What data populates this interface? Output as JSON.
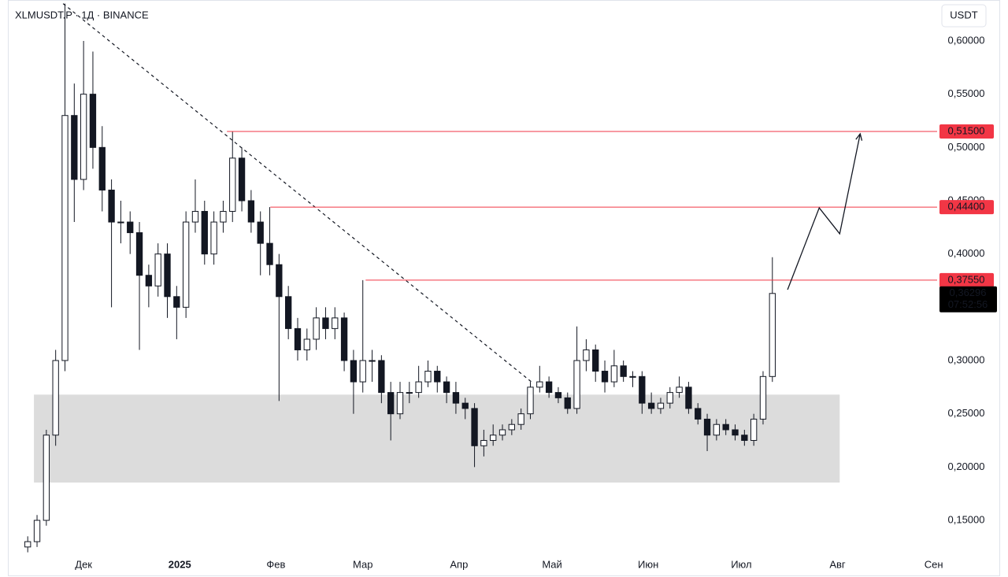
{
  "chart_data": {
    "type": "candlestick",
    "title": "XLMUSDT.P · 1Д · BINANCE",
    "currency": "USDT",
    "color": "#131722",
    "x": [
      -18,
      -15,
      -12,
      -9,
      -6,
      -3,
      0,
      3,
      6,
      9,
      12,
      15,
      18,
      21,
      24,
      27,
      30,
      33,
      36,
      39,
      42,
      45,
      48,
      51,
      54,
      57,
      60,
      63,
      66,
      69,
      72,
      75,
      78,
      81,
      84,
      87,
      90,
      93,
      96,
      99,
      102,
      105,
      108,
      111,
      114,
      117,
      120,
      123,
      126,
      129,
      132,
      135,
      138,
      141,
      144,
      147,
      150,
      153,
      156,
      159,
      162,
      165,
      168,
      171,
      174,
      177,
      180,
      183,
      186,
      189,
      192,
      195,
      198,
      201,
      204,
      207,
      210,
      213,
      216,
      219,
      222
    ],
    "open": [
      0.125,
      0.13,
      0.15,
      0.23,
      0.3,
      0.53,
      0.47,
      0.55,
      0.5,
      0.46,
      0.43,
      0.43,
      0.42,
      0.38,
      0.37,
      0.4,
      0.36,
      0.35,
      0.43,
      0.44,
      0.4,
      0.43,
      0.44,
      0.49,
      0.45,
      0.43,
      0.41,
      0.39,
      0.36,
      0.33,
      0.31,
      0.32,
      0.34,
      0.33,
      0.34,
      0.3,
      0.28,
      0.3,
      0.3,
      0.27,
      0.25,
      0.27,
      0.27,
      0.28,
      0.29,
      0.28,
      0.27,
      0.26,
      0.255,
      0.22,
      0.225,
      0.23,
      0.235,
      0.24,
      0.25,
      0.275,
      0.28,
      0.27,
      0.265,
      0.255,
      0.3,
      0.31,
      0.29,
      0.28,
      0.295,
      0.285,
      0.285,
      0.26,
      0.255,
      0.26,
      0.27,
      0.275,
      0.255,
      0.245,
      0.23,
      0.24,
      0.235,
      0.23,
      0.225,
      0.245,
      0.285
    ],
    "high": [
      0.135,
      0.155,
      0.235,
      0.31,
      0.635,
      0.56,
      0.6,
      0.59,
      0.52,
      0.47,
      0.45,
      0.44,
      0.43,
      0.39,
      0.41,
      0.41,
      0.37,
      0.44,
      0.47,
      0.45,
      0.44,
      0.45,
      0.515,
      0.5,
      0.46,
      0.44,
      0.444,
      0.4,
      0.37,
      0.34,
      0.33,
      0.35,
      0.35,
      0.35,
      0.345,
      0.31,
      0.3755,
      0.31,
      0.305,
      0.28,
      0.28,
      0.28,
      0.295,
      0.3,
      0.295,
      0.285,
      0.28,
      0.265,
      0.26,
      0.235,
      0.24,
      0.24,
      0.245,
      0.255,
      0.28,
      0.295,
      0.285,
      0.275,
      0.27,
      0.332,
      0.32,
      0.315,
      0.3,
      0.31,
      0.3,
      0.29,
      0.29,
      0.27,
      0.265,
      0.275,
      0.285,
      0.28,
      0.26,
      0.25,
      0.245,
      0.245,
      0.24,
      0.235,
      0.25,
      0.29,
      0.397
    ],
    "low": [
      0.12,
      0.125,
      0.145,
      0.22,
      0.29,
      0.43,
      0.46,
      0.48,
      0.44,
      0.35,
      0.41,
      0.4,
      0.31,
      0.35,
      0.36,
      0.34,
      0.32,
      0.34,
      0.42,
      0.39,
      0.39,
      0.42,
      0.43,
      0.44,
      0.42,
      0.38,
      0.38,
      0.262,
      0.32,
      0.3,
      0.3,
      0.31,
      0.32,
      0.32,
      0.29,
      0.25,
      0.27,
      0.28,
      0.26,
      0.225,
      0.245,
      0.26,
      0.265,
      0.275,
      0.27,
      0.26,
      0.25,
      0.245,
      0.2,
      0.21,
      0.22,
      0.225,
      0.23,
      0.235,
      0.245,
      0.27,
      0.265,
      0.26,
      0.25,
      0.25,
      0.29,
      0.28,
      0.27,
      0.275,
      0.28,
      0.275,
      0.25,
      0.25,
      0.25,
      0.255,
      0.265,
      0.25,
      0.24,
      0.215,
      0.225,
      0.23,
      0.225,
      0.22,
      0.22,
      0.24,
      0.28
    ],
    "close": [
      0.13,
      0.15,
      0.23,
      0.3,
      0.53,
      0.47,
      0.55,
      0.5,
      0.46,
      0.43,
      0.43,
      0.42,
      0.38,
      0.37,
      0.4,
      0.36,
      0.35,
      0.43,
      0.44,
      0.4,
      0.43,
      0.44,
      0.49,
      0.45,
      0.43,
      0.41,
      0.39,
      0.36,
      0.33,
      0.31,
      0.32,
      0.34,
      0.33,
      0.34,
      0.3,
      0.28,
      0.3,
      0.3,
      0.27,
      0.25,
      0.27,
      0.27,
      0.28,
      0.29,
      0.28,
      0.27,
      0.26,
      0.255,
      0.22,
      0.225,
      0.23,
      0.235,
      0.24,
      0.25,
      0.275,
      0.28,
      0.27,
      0.265,
      0.255,
      0.3,
      0.31,
      0.29,
      0.28,
      0.295,
      0.285,
      0.285,
      0.26,
      0.255,
      0.26,
      0.27,
      0.275,
      0.255,
      0.245,
      0.23,
      0.24,
      0.235,
      0.23,
      0.225,
      0.245,
      0.285,
      0.36296
    ],
    "xlim": [
      -24.4,
      275.1
    ],
    "xticks": [
      {
        "value": 0,
        "label": "Дек"
      },
      {
        "value": 31,
        "label": "2025"
      },
      {
        "value": 62,
        "label": "Фев"
      },
      {
        "value": 90,
        "label": "Мар"
      },
      {
        "value": 121,
        "label": "Апр"
      },
      {
        "value": 151,
        "label": "Май"
      },
      {
        "value": 182,
        "label": "Июн"
      },
      {
        "value": 212,
        "label": "Июл"
      },
      {
        "value": 243,
        "label": "Авг"
      },
      {
        "value": 274,
        "label": "Сен"
      }
    ],
    "ylim": [
      0.1212,
      0.6384
    ],
    "yticks": [
      {
        "value": 0.15,
        "label": "0,15000"
      },
      {
        "value": 0.2,
        "label": "0,20000"
      },
      {
        "value": 0.25,
        "label": "0,25000"
      },
      {
        "value": 0.3,
        "label": "0,30000"
      },
      {
        "value": 0.35,
        "label": "0,35000"
      },
      {
        "value": 0.4,
        "label": "0,40000"
      },
      {
        "value": 0.45,
        "label": "0,45000"
      },
      {
        "value": 0.5,
        "label": "0,50000"
      },
      {
        "value": 0.55,
        "label": "0,55000"
      },
      {
        "value": 0.6,
        "label": "0,60000"
      }
    ],
    "levels": [
      {
        "value": 0.515,
        "label": "0,51500",
        "from": 46.2,
        "color": "#f23645"
      },
      {
        "value": 0.444,
        "label": "0,44400",
        "from": 60.2,
        "color": "#f23645"
      },
      {
        "value": 0.3755,
        "label": "0,37550",
        "from": 90.9,
        "color": "#f23645"
      }
    ],
    "last_price": {
      "value": 0.36296,
      "label": "0,36296",
      "countdown": "07:52:56"
    },
    "trendline": {
      "x": [
        -6.6,
        144.5
      ],
      "y": [
        0.635,
        0.2796
      ]
    },
    "zone": {
      "x": [
        -16,
        243.7
      ],
      "y": [
        0.1855,
        0.268
      ],
      "color": "#dcdcdc"
    },
    "projection": {
      "x": [
        226.9,
        237.1,
        243.7,
        250.3
      ],
      "y": [
        0.3665,
        0.4433,
        0.419,
        0.5128
      ]
    }
  }
}
